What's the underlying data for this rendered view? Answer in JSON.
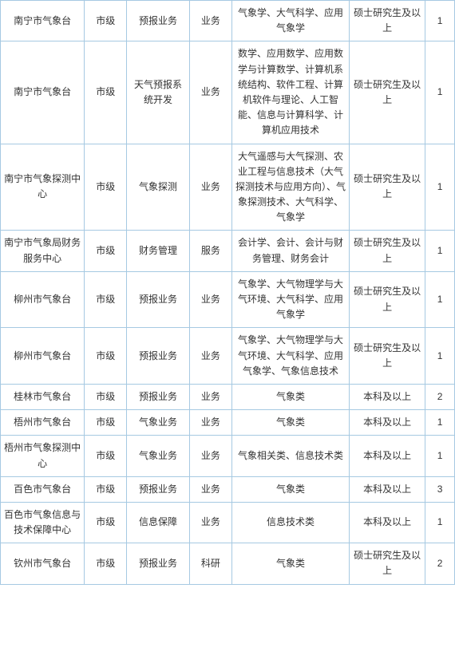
{
  "table": {
    "border_color": "#a6c9e2",
    "text_color": "#333333",
    "background_color": "#ffffff",
    "font_size": 12,
    "columns": [
      {
        "key": "unit",
        "width": 100
      },
      {
        "key": "level",
        "width": 50
      },
      {
        "key": "position",
        "width": 75
      },
      {
        "key": "type",
        "width": 50
      },
      {
        "key": "major",
        "width": 140
      },
      {
        "key": "education",
        "width": 90
      },
      {
        "key": "count",
        "width": 35
      }
    ],
    "rows": [
      {
        "unit": "南宁市气象台",
        "level": "市级",
        "position": "预报业务",
        "type": "业务",
        "major": "气象学、大气科学、应用气象学",
        "education": "硕士研究生及以上",
        "count": "1"
      },
      {
        "unit": "南宁市气象台",
        "level": "市级",
        "position": "天气预报系统开发",
        "type": "业务",
        "major": "数学、应用数学、应用数学与计算数学、计算机系统结构、软件工程、计算机软件与理论、人工智能、信息与计算科学、计算机应用技术",
        "education": "硕士研究生及以上",
        "count": "1"
      },
      {
        "unit": "南宁市气象探测中心",
        "level": "市级",
        "position": "气象探测",
        "type": "业务",
        "major": "大气遥感与大气探测、农业工程与信息技术（大气探测技术与应用方向）、气象探测技术、大气科学、气象学",
        "education": "硕士研究生及以上",
        "count": "1"
      },
      {
        "unit": "南宁市气象局财务服务中心",
        "level": "市级",
        "position": "财务管理",
        "type": "服务",
        "major": "会计学、会计、会计与财务管理、财务会计",
        "education": "硕士研究生及以上",
        "count": "1"
      },
      {
        "unit": "柳州市气象台",
        "level": "市级",
        "position": "预报业务",
        "type": "业务",
        "major": "气象学、大气物理学与大气环境、大气科学、应用气象学",
        "education": "硕士研究生及以上",
        "count": "1"
      },
      {
        "unit": "柳州市气象台",
        "level": "市级",
        "position": "预报业务",
        "type": "业务",
        "major": "气象学、大气物理学与大气环境、大气科学、应用气象学、气象信息技术",
        "education": "硕士研究生及以上",
        "count": "1"
      },
      {
        "unit": "桂林市气象台",
        "level": "市级",
        "position": "预报业务",
        "type": "业务",
        "major": "气象类",
        "education": "本科及以上",
        "count": "2"
      },
      {
        "unit": "梧州市气象台",
        "level": "市级",
        "position": "气象业务",
        "type": "业务",
        "major": "气象类",
        "education": "本科及以上",
        "count": "1"
      },
      {
        "unit": "梧州市气象探测中心",
        "level": "市级",
        "position": "气象业务",
        "type": "业务",
        "major": "气象相关类、信息技术类",
        "education": "本科及以上",
        "count": "1"
      },
      {
        "unit": "百色市气象台",
        "level": "市级",
        "position": "预报业务",
        "type": "业务",
        "major": "气象类",
        "education": "本科及以上",
        "count": "3"
      },
      {
        "unit": "百色市气象信息与技术保障中心",
        "level": "市级",
        "position": "信息保障",
        "type": "业务",
        "major": "信息技术类",
        "education": "本科及以上",
        "count": "1"
      },
      {
        "unit": "钦州市气象台",
        "level": "市级",
        "position": "预报业务",
        "type": "科研",
        "major": "气象类",
        "education": "硕士研究生及以上",
        "count": "2"
      }
    ]
  }
}
